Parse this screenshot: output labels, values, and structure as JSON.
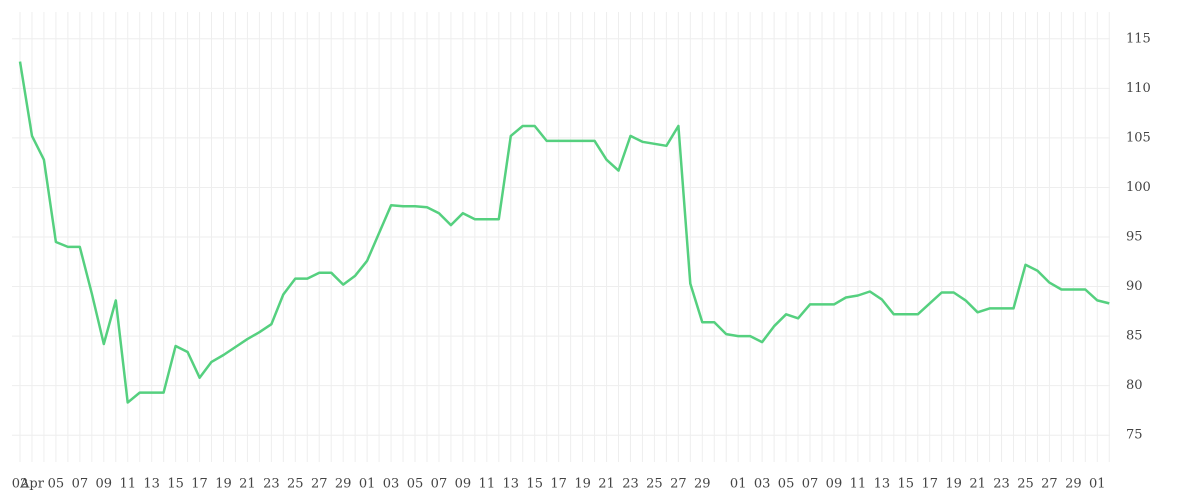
{
  "chart_data": {
    "type": "line",
    "color": "#55d07f",
    "grid": true,
    "y_axis_side": "right",
    "categories": [
      "02",
      "Apr",
      null,
      "05",
      null,
      "07",
      null,
      "09",
      null,
      "11",
      null,
      "13",
      null,
      "15",
      null,
      "17",
      null,
      "19",
      null,
      "21",
      null,
      "23",
      null,
      "25",
      null,
      "27",
      null,
      "29",
      null,
      "01",
      null,
      "03",
      null,
      "05",
      null,
      "07",
      null,
      "09",
      null,
      "11",
      null,
      "13",
      null,
      "15",
      null,
      "17",
      null,
      "19",
      null,
      "21",
      null,
      "23",
      null,
      "25",
      null,
      "27",
      null,
      "29",
      null,
      null,
      "01",
      null,
      "03",
      null,
      "05",
      null,
      "07",
      null,
      "09",
      null,
      "11",
      null,
      "13",
      null,
      "15",
      null,
      "17",
      null,
      "19",
      null,
      "21",
      null,
      "23",
      null,
      "25",
      null,
      "27",
      null,
      "29",
      null,
      "01",
      null
    ],
    "values": [
      112.7,
      105.2,
      102.8,
      94.5,
      94.0,
      94.0,
      89.3,
      84.2,
      88.6,
      78.3,
      79.3,
      79.3,
      79.3,
      84.0,
      83.4,
      80.8,
      82.4,
      83.1,
      83.9,
      84.7,
      85.4,
      86.2,
      89.2,
      90.8,
      90.8,
      91.4,
      91.4,
      90.2,
      91.1,
      92.6,
      95.4,
      98.2,
      98.1,
      98.1,
      98.0,
      97.4,
      96.2,
      97.4,
      96.8,
      96.8,
      96.8,
      105.2,
      106.2,
      106.2,
      104.7,
      104.7,
      104.7,
      104.7,
      104.7,
      102.8,
      101.7,
      105.2,
      104.6,
      104.4,
      104.2,
      106.2,
      90.3,
      86.4,
      86.4,
      85.2,
      85.0,
      85.0,
      84.4,
      86.0,
      87.2,
      86.8,
      88.2,
      88.2,
      88.2,
      88.9,
      89.1,
      89.5,
      88.7,
      87.2,
      87.2,
      87.2,
      88.3,
      89.4,
      89.4,
      88.6,
      87.4,
      87.8,
      87.8,
      87.8,
      92.2,
      91.6,
      90.4,
      89.7,
      89.7,
      89.7,
      88.6,
      88.3
    ],
    "ylim": [
      72.3,
      117.7
    ],
    "yticks": [
      75,
      80,
      85,
      90,
      95,
      100,
      105,
      110,
      115
    ]
  }
}
